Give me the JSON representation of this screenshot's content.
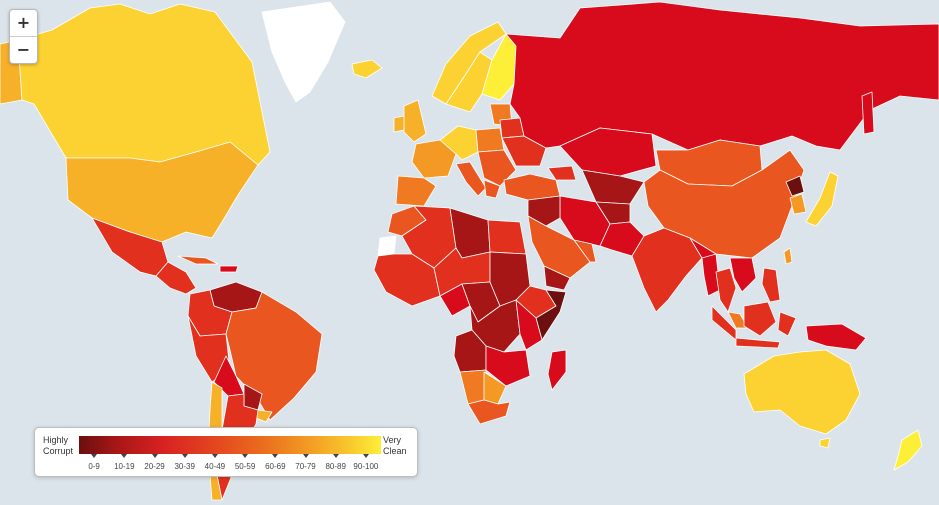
{
  "zoom": {
    "in_label": "+",
    "out_label": "−"
  },
  "legend": {
    "low_label": "Highly Corrupt",
    "high_label": "Very Clean",
    "bins": [
      "0-9",
      "10-19",
      "20-29",
      "30-39",
      "40-49",
      "50-59",
      "60-69",
      "70-79",
      "80-89",
      "90-100"
    ]
  },
  "colors": {
    "ocean": "#dbe4ea",
    "land_unscored": "#ffffff",
    "score_0_9": "#6b0f0f",
    "score_10_19": "#a61616",
    "score_20_29": "#d80b1c",
    "score_30_39": "#e2301f",
    "score_40_49": "#e9561f",
    "score_50_59": "#f07a21",
    "score_60_69": "#f49a24",
    "score_70_79": "#f7b128",
    "score_80_89": "#fbd232",
    "score_90_100": "#fdee38"
  }
}
